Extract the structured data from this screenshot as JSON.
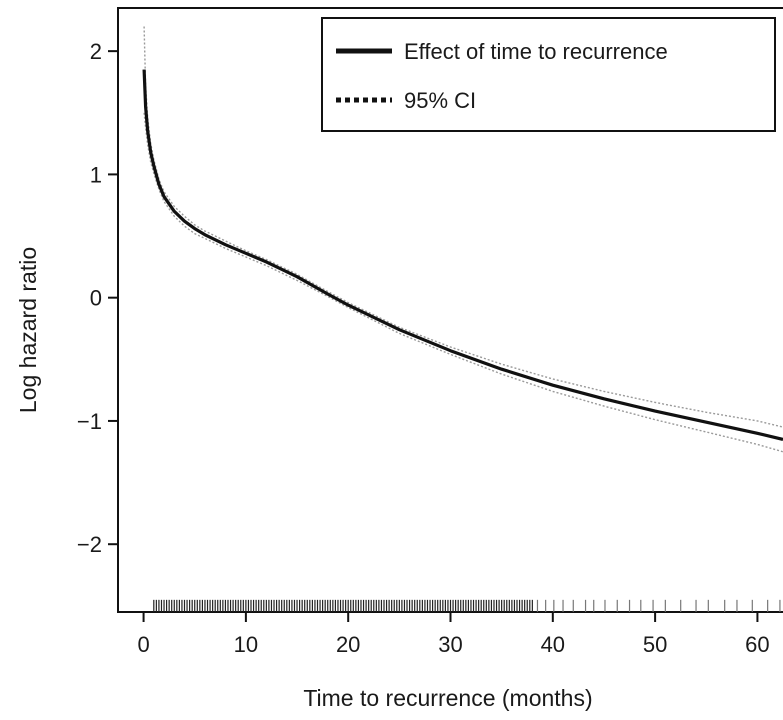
{
  "chart_data": {
    "type": "line",
    "title": "",
    "xlabel": "Time to recurrence (months)",
    "ylabel": "Log hazard ratio",
    "xlim": [
      -2.5,
      62.5
    ],
    "ylim": [
      -2.55,
      2.35
    ],
    "xticks": [
      0,
      10,
      20,
      30,
      40,
      50,
      60
    ],
    "yticks": [
      2,
      1,
      0,
      -1,
      -2
    ],
    "ytick_labels": [
      "2",
      "1",
      "0",
      "−1",
      "−2"
    ],
    "grid": false,
    "legend_position": "top-right",
    "legend": [
      {
        "label": "Effect of time to recurrence",
        "style": "solid"
      },
      {
        "label": "95% CI",
        "style": "dotted"
      }
    ],
    "series": [
      {
        "name": "Effect of time to recurrence",
        "style": "solid",
        "color": "#111111",
        "x": [
          0.05,
          0.2,
          0.4,
          0.7,
          1,
          1.5,
          2,
          3,
          4,
          5,
          6,
          8,
          10,
          12,
          15,
          18,
          20,
          25,
          30,
          35,
          40,
          45,
          50,
          55,
          60,
          62.5
        ],
        "y": [
          1.85,
          1.55,
          1.35,
          1.18,
          1.07,
          0.92,
          0.82,
          0.7,
          0.62,
          0.56,
          0.51,
          0.43,
          0.36,
          0.29,
          0.17,
          0.03,
          -0.06,
          -0.26,
          -0.43,
          -0.58,
          -0.71,
          -0.82,
          -0.92,
          -1.01,
          -1.1,
          -1.15
        ]
      },
      {
        "name": "95% CI",
        "style": "dotted",
        "color": "#9a9a9a",
        "x": [
          0.05,
          0.2,
          0.4,
          0.7,
          1,
          1.5,
          2,
          3,
          4,
          5,
          6,
          8,
          10,
          12,
          15,
          18,
          20,
          25,
          30,
          35,
          40,
          45,
          50,
          55,
          60,
          62.5
        ],
        "y": [
          2.2,
          1.72,
          1.46,
          1.25,
          1.12,
          0.96,
          0.86,
          0.74,
          0.66,
          0.59,
          0.54,
          0.46,
          0.38,
          0.31,
          0.19,
          0.05,
          -0.04,
          -0.24,
          -0.4,
          -0.54,
          -0.66,
          -0.76,
          -0.85,
          -0.93,
          -1.0,
          -1.05
        ]
      },
      {
        "name": "95% CI",
        "style": "dotted",
        "color": "#9a9a9a",
        "x": [
          0.05,
          0.2,
          0.4,
          0.7,
          1,
          1.5,
          2,
          3,
          4,
          5,
          6,
          8,
          10,
          12,
          15,
          18,
          20,
          25,
          30,
          35,
          40,
          45,
          50,
          55,
          60,
          62.5
        ],
        "y": [
          1.5,
          1.38,
          1.24,
          1.1,
          1.01,
          0.88,
          0.78,
          0.66,
          0.58,
          0.52,
          0.48,
          0.4,
          0.33,
          0.26,
          0.14,
          0.01,
          -0.08,
          -0.29,
          -0.46,
          -0.62,
          -0.76,
          -0.88,
          -0.99,
          -1.09,
          -1.19,
          -1.25
        ]
      }
    ],
    "rug": {
      "y": -2.5,
      "dense_range": [
        1,
        38
      ],
      "dense_step": 0.25,
      "sparse": [
        38.5,
        39.3,
        40.1,
        41,
        42,
        43.2,
        44,
        45.1,
        46.3,
        47.5,
        48.6,
        49.8,
        51,
        52.5,
        54,
        55.2,
        56.8,
        58,
        59.5,
        61,
        62.2
      ]
    }
  }
}
